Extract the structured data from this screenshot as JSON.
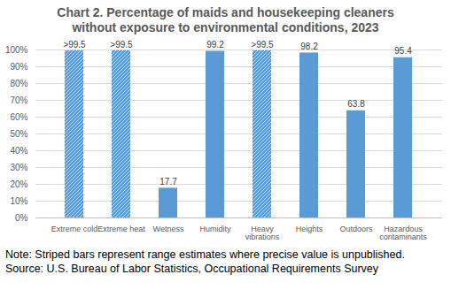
{
  "chart_data": {
    "type": "bar",
    "title": "Chart 2. Percentage of maids and housekeeping cleaners without exposure to environmental conditions, 2023",
    "categories": [
      "Extreme cold",
      "Extreme heat",
      "Wetness",
      "Humidity",
      "Heavy vibrations",
      "Heights",
      "Outdoors",
      "Hazardous contaminants"
    ],
    "values": [
      99.5,
      99.5,
      17.7,
      99.2,
      99.5,
      98.2,
      63.8,
      95.4
    ],
    "value_labels": [
      ">99.5",
      ">99.5",
      "17.7",
      "99.2",
      ">99.5",
      "98.2",
      "63.8",
      "95.4"
    ],
    "data_labels": true,
    "color": "#5b9bd5",
    "ylim": [
      0,
      100
    ],
    "yticks": [
      {
        "value": 0,
        "label": "0%"
      },
      {
        "value": 10,
        "label": "10%"
      },
      {
        "value": 20,
        "label": "20%"
      },
      {
        "value": 30,
        "label": "30%"
      },
      {
        "value": 40,
        "label": "40%"
      },
      {
        "value": 50,
        "label": "50%"
      },
      {
        "value": 60,
        "label": "60%"
      },
      {
        "value": 70,
        "label": "70%"
      },
      {
        "value": 80,
        "label": "80%"
      },
      {
        "value": 90,
        "label": "90%"
      },
      {
        "value": 100,
        "label": "100%"
      }
    ],
    "grid": true,
    "note": "Note: Striped bars represent range estimates where precise value is unpublished.",
    "source": "Source: U.S. Bureau of Labor Statistics, Occupational Requirements Survey"
  }
}
